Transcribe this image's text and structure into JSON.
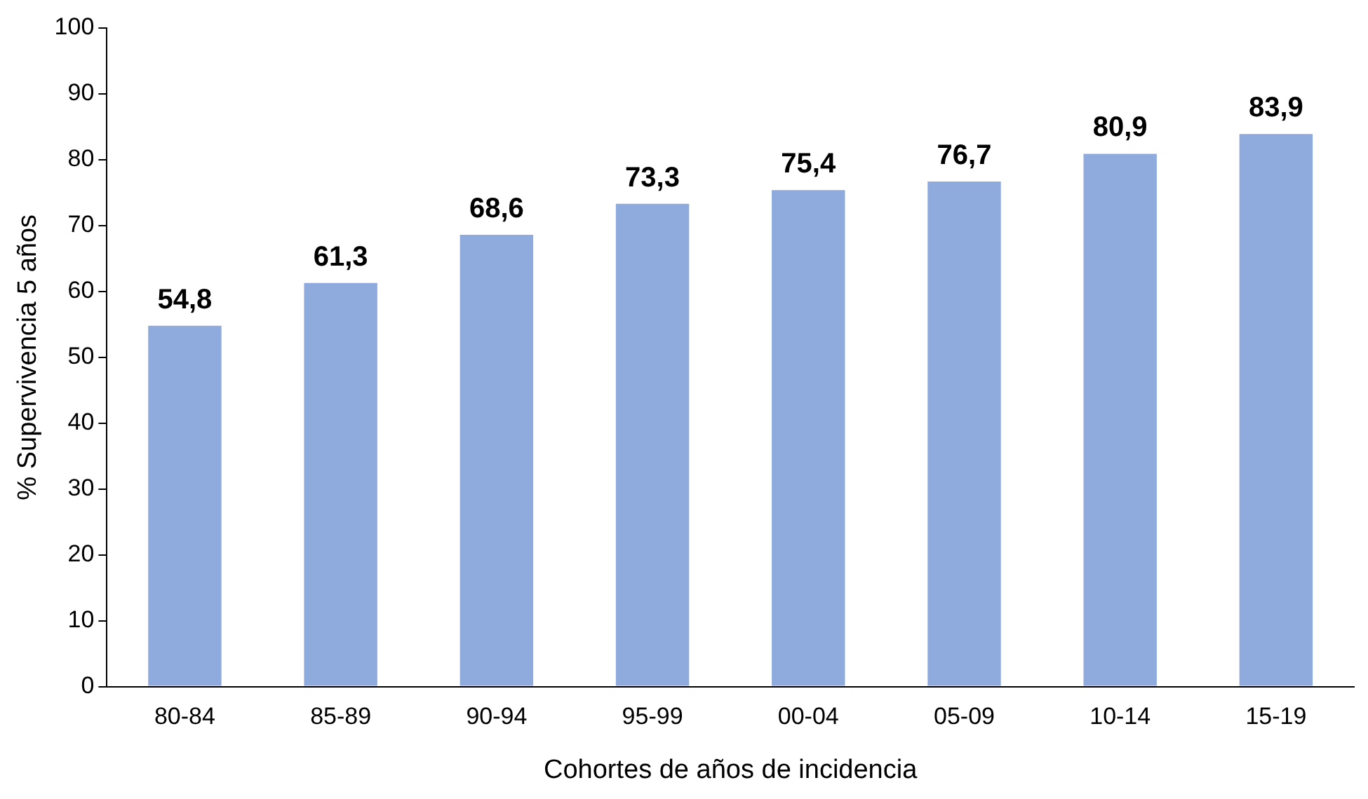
{
  "chart_data": {
    "type": "bar",
    "xlabel": "Cohortes de años de incidencia",
    "ylabel": "% Supervivencia 5 años",
    "categories": [
      "80-84",
      "85-89",
      "90-94",
      "95-99",
      "00-04",
      "05-09",
      "10-14",
      "15-19"
    ],
    "values": [
      54.8,
      61.3,
      68.6,
      73.3,
      75.4,
      76.7,
      80.9,
      83.9
    ],
    "value_labels": [
      "54,8",
      "61,3",
      "68,6",
      "73,3",
      "75,4",
      "76,7",
      "80,9",
      "83,9"
    ],
    "color": "#8faadc",
    "ylim": [
      0,
      100
    ],
    "yticks": [
      0,
      10,
      20,
      30,
      40,
      50,
      60,
      70,
      80,
      90,
      100
    ],
    "grid": false,
    "legend": false
  }
}
